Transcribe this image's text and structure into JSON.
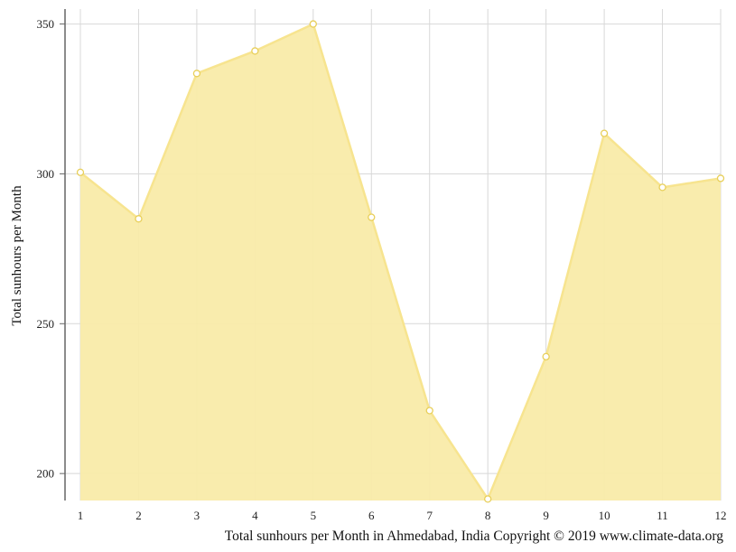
{
  "chart_data": {
    "type": "area",
    "ylabel": "Total sunhours per Month",
    "caption": "Total sunhours per Month in Ahmedabad, India Copyright © 2019 www.climate-data.org",
    "x": [
      1,
      2,
      3,
      4,
      5,
      6,
      7,
      8,
      9,
      10,
      11,
      12
    ],
    "x_ticks": [
      "1",
      "2",
      "3",
      "4",
      "5",
      "6",
      "7",
      "8",
      "9",
      "10",
      "11",
      "12"
    ],
    "series": [
      {
        "values": [
          300.5,
          285,
          333.5,
          341,
          350,
          285.5,
          221,
          191.5,
          239,
          313.5,
          295.5,
          298.5
        ]
      }
    ],
    "ylim": [
      191,
      355
    ],
    "y_ticks": [
      200,
      250,
      300,
      350
    ],
    "grid": true,
    "colors": {
      "fill": "#f9eba9",
      "line": "#f7e48f",
      "marker_fill": "#ffffff",
      "marker_stroke": "#e8cf5a",
      "grid": "#d8d8d8",
      "axis": "#666666"
    }
  }
}
